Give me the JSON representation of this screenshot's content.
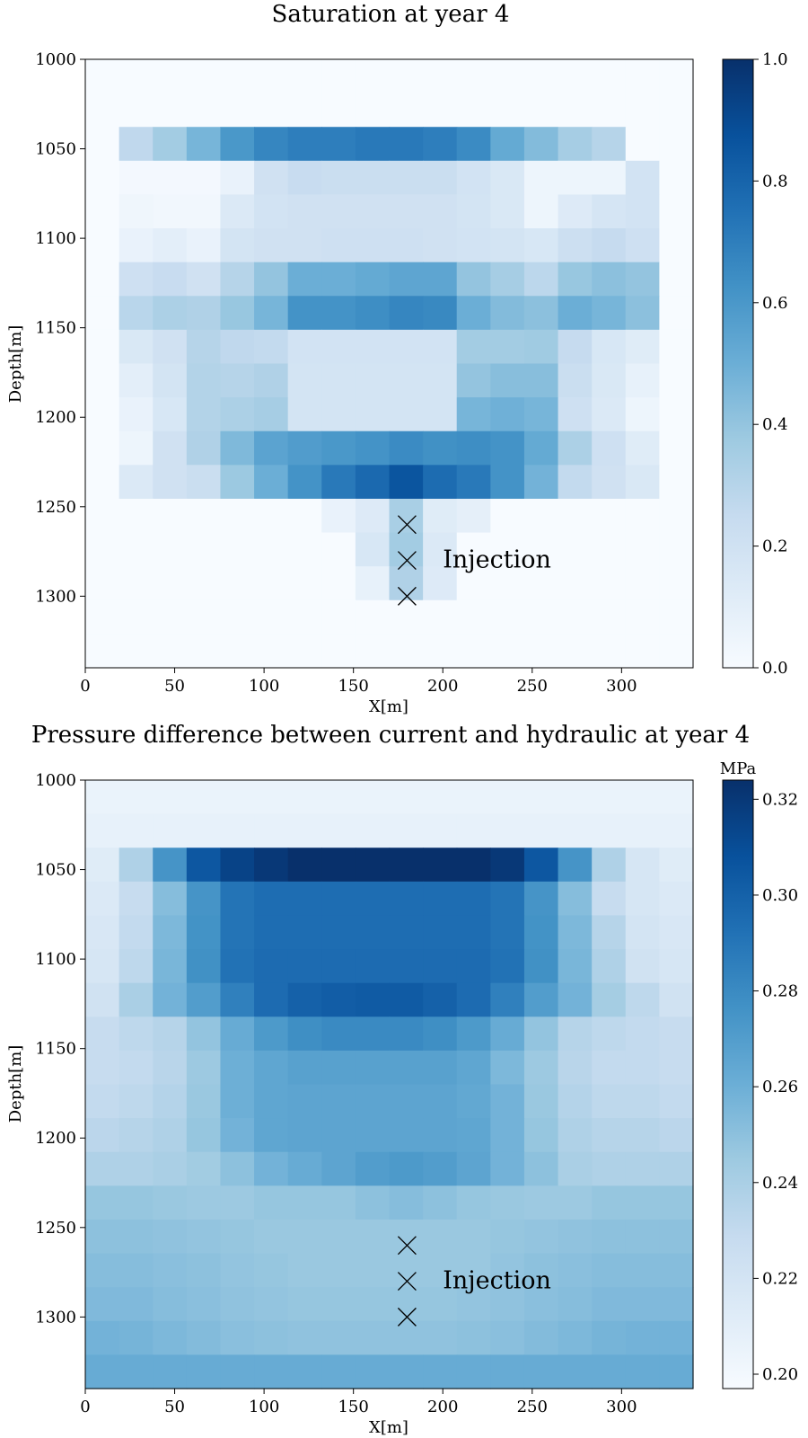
{
  "chart_data": [
    {
      "type": "heatmap",
      "title": "Saturation at year 4",
      "xlabel": "X[m]",
      "ylabel": "Depth[m]",
      "xlim": [
        0,
        340
      ],
      "ylim": [
        1340,
        1000
      ],
      "x_ticks": [
        0,
        50,
        100,
        150,
        200,
        250,
        300
      ],
      "y_ticks": [
        1000,
        1050,
        1100,
        1150,
        1200,
        1250,
        1300
      ],
      "colormap": "Blues",
      "colorbar": {
        "min": 0.0,
        "max": 1.0,
        "ticks": [
          "0.0",
          "0.2",
          "0.4",
          "0.6",
          "0.8",
          "1.0"
        ],
        "tick_values": [
          0.0,
          0.2,
          0.4,
          0.6,
          0.8,
          1.0
        ],
        "unit": ""
      },
      "cell_size_m": [
        18.89,
        18.89
      ],
      "grid_cols": 18,
      "grid_rows": 18,
      "values": [
        [
          0,
          0,
          0,
          0,
          0,
          0,
          0,
          0,
          0,
          0,
          0,
          0,
          0,
          0,
          0,
          0,
          0,
          0
        ],
        [
          0,
          0,
          0,
          0,
          0,
          0,
          0,
          0,
          0,
          0,
          0,
          0,
          0,
          0,
          0,
          0,
          0,
          0
        ],
        [
          0,
          0.27,
          0.36,
          0.47,
          0.6,
          0.67,
          0.7,
          0.7,
          0.72,
          0.72,
          0.7,
          0.65,
          0.52,
          0.44,
          0.35,
          0.3,
          0,
          0
        ],
        [
          0,
          0.02,
          0.02,
          0.02,
          0.07,
          0.2,
          0.24,
          0.23,
          0.23,
          0.23,
          0.23,
          0.19,
          0.15,
          0.05,
          0.05,
          0.05,
          0.19,
          0
        ],
        [
          0,
          0.04,
          0.03,
          0.03,
          0.14,
          0.19,
          0.2,
          0.2,
          0.2,
          0.2,
          0.2,
          0.18,
          0.15,
          0.05,
          0.13,
          0.17,
          0.19,
          0
        ],
        [
          0,
          0.07,
          0.1,
          0.07,
          0.18,
          0.2,
          0.2,
          0.21,
          0.21,
          0.21,
          0.2,
          0.19,
          0.18,
          0.16,
          0.22,
          0.25,
          0.21,
          0
        ],
        [
          0,
          0.21,
          0.24,
          0.2,
          0.3,
          0.4,
          0.5,
          0.5,
          0.52,
          0.54,
          0.54,
          0.4,
          0.35,
          0.28,
          0.39,
          0.42,
          0.4,
          0
        ],
        [
          0,
          0.29,
          0.33,
          0.32,
          0.39,
          0.47,
          0.62,
          0.62,
          0.64,
          0.67,
          0.66,
          0.5,
          0.44,
          0.42,
          0.5,
          0.47,
          0.42,
          0
        ],
        [
          0,
          0.15,
          0.2,
          0.3,
          0.27,
          0.26,
          0.19,
          0.19,
          0.19,
          0.19,
          0.19,
          0.36,
          0.36,
          0.37,
          0.25,
          0.16,
          0.12,
          0
        ],
        [
          0,
          0.1,
          0.18,
          0.31,
          0.3,
          0.32,
          0.18,
          0.18,
          0.18,
          0.18,
          0.18,
          0.4,
          0.43,
          0.43,
          0.23,
          0.15,
          0.08,
          0
        ],
        [
          0,
          0.07,
          0.16,
          0.31,
          0.33,
          0.35,
          0.18,
          0.18,
          0.18,
          0.18,
          0.18,
          0.47,
          0.49,
          0.47,
          0.21,
          0.14,
          0.05,
          0
        ],
        [
          0,
          0.05,
          0.2,
          0.32,
          0.45,
          0.55,
          0.58,
          0.6,
          0.62,
          0.65,
          0.63,
          0.64,
          0.62,
          0.52,
          0.33,
          0.21,
          0.12,
          0
        ],
        [
          0,
          0.14,
          0.2,
          0.23,
          0.38,
          0.5,
          0.62,
          0.72,
          0.78,
          0.86,
          0.77,
          0.72,
          0.62,
          0.48,
          0.26,
          0.2,
          0.15,
          0
        ],
        [
          0,
          0,
          0,
          0,
          0,
          0,
          0,
          0.07,
          0.13,
          0.34,
          0.12,
          0.09,
          0,
          0,
          0,
          0,
          0,
          0
        ],
        [
          0,
          0,
          0,
          0,
          0,
          0,
          0,
          0,
          0.16,
          0.36,
          0.14,
          0,
          0,
          0,
          0,
          0,
          0,
          0
        ],
        [
          0,
          0,
          0,
          0,
          0,
          0,
          0,
          0,
          0.08,
          0.32,
          0.13,
          0,
          0,
          0,
          0,
          0,
          0,
          0
        ],
        [
          0,
          0,
          0,
          0,
          0,
          0,
          0,
          0,
          0,
          0,
          0,
          0,
          0,
          0,
          0,
          0,
          0,
          0
        ],
        [
          0,
          0,
          0,
          0,
          0,
          0,
          0,
          0,
          0,
          0,
          0,
          0,
          0,
          0,
          0,
          0,
          0,
          0
        ]
      ],
      "markers": [
        {
          "x": 180,
          "y": 1260
        },
        {
          "x": 180,
          "y": 1280
        },
        {
          "x": 180,
          "y": 1300
        }
      ],
      "annotation": {
        "text": "Injection",
        "x": 200,
        "y": 1280
      }
    },
    {
      "type": "heatmap",
      "title": "Pressure difference between current and hydraulic at year 4",
      "xlabel": "X[m]",
      "ylabel": "Depth[m]",
      "xlim": [
        0,
        340
      ],
      "ylim": [
        1340,
        1000
      ],
      "x_ticks": [
        0,
        50,
        100,
        150,
        200,
        250,
        300
      ],
      "y_ticks": [
        1000,
        1050,
        1100,
        1150,
        1200,
        1250,
        1300
      ],
      "colormap": "Blues",
      "colorbar": {
        "min": 0.197,
        "max": 0.324,
        "ticks": [
          "0.20",
          "0.22",
          "0.24",
          "0.26",
          "0.28",
          "0.30",
          "0.32"
        ],
        "tick_values": [
          0.2,
          0.22,
          0.24,
          0.26,
          0.28,
          0.3,
          0.32
        ],
        "unit": "MPa"
      },
      "cell_size_m": [
        18.89,
        18.89
      ],
      "grid_cols": 18,
      "grid_rows": 18,
      "values": [
        [
          0.205,
          0.205,
          0.205,
          0.205,
          0.205,
          0.205,
          0.205,
          0.205,
          0.205,
          0.205,
          0.205,
          0.205,
          0.205,
          0.205,
          0.205,
          0.205,
          0.205,
          0.205
        ],
        [
          0.207,
          0.207,
          0.207,
          0.207,
          0.207,
          0.207,
          0.207,
          0.207,
          0.207,
          0.207,
          0.207,
          0.207,
          0.207,
          0.207,
          0.207,
          0.207,
          0.207,
          0.207
        ],
        [
          0.212,
          0.238,
          0.275,
          0.305,
          0.315,
          0.32,
          0.324,
          0.324,
          0.324,
          0.324,
          0.324,
          0.324,
          0.32,
          0.305,
          0.275,
          0.238,
          0.218,
          0.212
        ],
        [
          0.215,
          0.228,
          0.252,
          0.275,
          0.291,
          0.294,
          0.294,
          0.294,
          0.294,
          0.294,
          0.294,
          0.294,
          0.291,
          0.275,
          0.252,
          0.228,
          0.218,
          0.215
        ],
        [
          0.217,
          0.23,
          0.255,
          0.276,
          0.291,
          0.294,
          0.294,
          0.294,
          0.294,
          0.294,
          0.294,
          0.294,
          0.291,
          0.276,
          0.255,
          0.235,
          0.22,
          0.217
        ],
        [
          0.218,
          0.232,
          0.256,
          0.277,
          0.292,
          0.295,
          0.295,
          0.295,
          0.295,
          0.295,
          0.295,
          0.295,
          0.292,
          0.277,
          0.256,
          0.238,
          0.222,
          0.218
        ],
        [
          0.222,
          0.24,
          0.258,
          0.27,
          0.285,
          0.295,
          0.3,
          0.302,
          0.303,
          0.303,
          0.3,
          0.295,
          0.285,
          0.27,
          0.258,
          0.242,
          0.232,
          0.222
        ],
        [
          0.228,
          0.232,
          0.235,
          0.248,
          0.262,
          0.272,
          0.278,
          0.28,
          0.28,
          0.28,
          0.278,
          0.272,
          0.262,
          0.248,
          0.235,
          0.232,
          0.23,
          0.228
        ],
        [
          0.228,
          0.23,
          0.234,
          0.245,
          0.26,
          0.265,
          0.268,
          0.268,
          0.268,
          0.268,
          0.268,
          0.265,
          0.255,
          0.245,
          0.234,
          0.23,
          0.23,
          0.228
        ],
        [
          0.23,
          0.232,
          0.236,
          0.246,
          0.26,
          0.265,
          0.266,
          0.266,
          0.266,
          0.266,
          0.266,
          0.264,
          0.258,
          0.246,
          0.236,
          0.232,
          0.232,
          0.23
        ],
        [
          0.233,
          0.235,
          0.238,
          0.247,
          0.258,
          0.265,
          0.266,
          0.266,
          0.266,
          0.266,
          0.266,
          0.265,
          0.258,
          0.247,
          0.238,
          0.235,
          0.235,
          0.233
        ],
        [
          0.238,
          0.238,
          0.24,
          0.243,
          0.25,
          0.258,
          0.262,
          0.266,
          0.27,
          0.272,
          0.27,
          0.266,
          0.258,
          0.25,
          0.24,
          0.238,
          0.238,
          0.238
        ],
        [
          0.247,
          0.247,
          0.246,
          0.245,
          0.245,
          0.247,
          0.247,
          0.247,
          0.25,
          0.252,
          0.25,
          0.247,
          0.246,
          0.245,
          0.245,
          0.247,
          0.247,
          0.247
        ],
        [
          0.25,
          0.25,
          0.249,
          0.248,
          0.247,
          0.246,
          0.246,
          0.246,
          0.246,
          0.246,
          0.246,
          0.246,
          0.247,
          0.248,
          0.249,
          0.25,
          0.25,
          0.25
        ],
        [
          0.252,
          0.252,
          0.251,
          0.25,
          0.248,
          0.247,
          0.246,
          0.246,
          0.246,
          0.246,
          0.246,
          0.246,
          0.248,
          0.25,
          0.251,
          0.252,
          0.252,
          0.252
        ],
        [
          0.254,
          0.254,
          0.252,
          0.251,
          0.249,
          0.248,
          0.247,
          0.247,
          0.247,
          0.247,
          0.247,
          0.248,
          0.249,
          0.251,
          0.252,
          0.254,
          0.254,
          0.254
        ],
        [
          0.258,
          0.257,
          0.255,
          0.253,
          0.251,
          0.25,
          0.249,
          0.249,
          0.249,
          0.249,
          0.249,
          0.25,
          0.251,
          0.253,
          0.255,
          0.257,
          0.258,
          0.258
        ],
        [
          0.262,
          0.262,
          0.262,
          0.262,
          0.262,
          0.262,
          0.262,
          0.262,
          0.262,
          0.262,
          0.262,
          0.262,
          0.262,
          0.262,
          0.262,
          0.262,
          0.262,
          0.262
        ]
      ],
      "markers": [
        {
          "x": 180,
          "y": 1260
        },
        {
          "x": 180,
          "y": 1280
        },
        {
          "x": 180,
          "y": 1300
        }
      ],
      "annotation": {
        "text": "Injection",
        "x": 200,
        "y": 1280
      }
    }
  ]
}
